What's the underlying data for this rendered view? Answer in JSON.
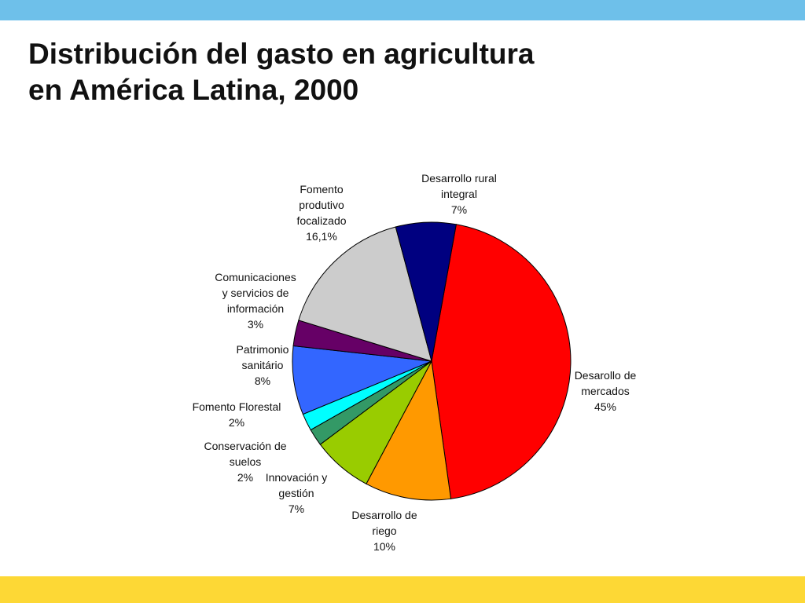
{
  "title_lines": [
    "Distribución del gasto en agricultura",
    "en América Latina, 2000"
  ],
  "colors": {
    "top_bar": "#6ec0ea",
    "bottom_bar": "#fdd835"
  },
  "chart_data": {
    "type": "pie",
    "title": "Distribución del gasto en agricultura en América Latina, 2000",
    "start": "clockwise from top",
    "slices": [
      {
        "name": "Desarollo de mercados",
        "value": 45,
        "display": "45%",
        "color": "#ff0000",
        "label_lines": [
          "Desarollo de",
          "mercados",
          "45%"
        ]
      },
      {
        "name": "Desarrollo de riego",
        "value": 10,
        "display": "10%",
        "color": "#ff9900",
        "label_lines": [
          "Desarrollo de",
          "riego",
          "10%"
        ]
      },
      {
        "name": "Innovación y gestión",
        "value": 7,
        "display": "7%",
        "color": "#99cc00",
        "label_lines": [
          "Innovación y",
          "gestión",
          "7%"
        ]
      },
      {
        "name": "Conservación de suelos",
        "value": 2,
        "display": "2%",
        "color": "#339966",
        "label_lines": [
          "Conservación de",
          "suelos",
          "2%"
        ]
      },
      {
        "name": "Fomento Florestal",
        "value": 2,
        "display": "2%",
        "color": "#00ffff",
        "label_lines": [
          "Fomento Florestal",
          "2%"
        ]
      },
      {
        "name": "Patrimonio sanitário",
        "value": 8,
        "display": "8%",
        "color": "#3366ff",
        "label_lines": [
          "Patrimonio",
          "sanitário",
          "8%"
        ]
      },
      {
        "name": "Comunicaciones y servicios de información",
        "value": 3,
        "display": "3%",
        "color": "#660066",
        "label_lines": [
          "Comunicaciones",
          "y servicios de",
          "información",
          "3%"
        ]
      },
      {
        "name": "Fomento produtivo focalizado",
        "value": 16.1,
        "display": "16,1%",
        "color": "#cccccc",
        "label_lines": [
          "Fomento",
          "produtivo",
          "focalizado",
          "16,1%"
        ]
      },
      {
        "name": "Desarrollo rural integral",
        "value": 7,
        "display": "7%",
        "color": "#000080",
        "label_lines": [
          "Desarrollo rural",
          "integral",
          "7%"
        ]
      }
    ]
  }
}
